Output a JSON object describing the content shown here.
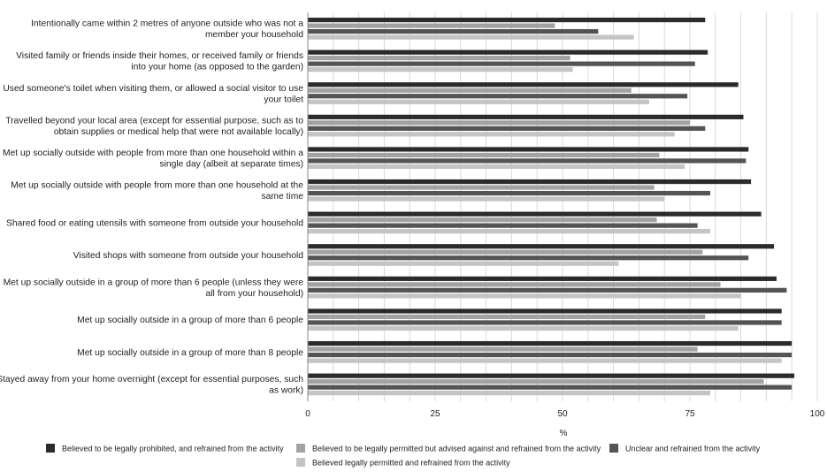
{
  "chart_data": {
    "type": "bar",
    "orientation": "horizontal",
    "xlabel": "%",
    "xlim": [
      0,
      100
    ],
    "xticks": [
      0,
      25,
      50,
      75,
      100
    ],
    "grid": true,
    "legend_placement": "bottom",
    "categories": [
      [
        "Intentionally came within 2 metres of anyone outside who was not a",
        "member your household"
      ],
      [
        "Visited family or friends inside their homes, or received family or friends",
        "into your home (as opposed to the garden)"
      ],
      [
        "Used someone's toilet when visiting them, or allowed a social visitor to use",
        "your toilet"
      ],
      [
        "Travelled beyond your local area (except for essential purpose, such as to",
        "obtain supplies or medical help that were not available locally)"
      ],
      [
        "Met up socially outside with people from more than one household within a",
        "single day (albeit at separate times)"
      ],
      [
        "Met up socially outside with people from more than one household at the",
        "same time"
      ],
      [
        "Shared food or eating utensils with someone from outside your household"
      ],
      [
        "Visited shops with someone from outside your household"
      ],
      [
        "Met up socially outside in a group of more than 6 people (unless they were",
        "all from your household)"
      ],
      [
        "Met up socially outside in a group of more than 6 people"
      ],
      [
        "Met up socially outside in a group of more than 8 people"
      ],
      [
        "Stayed away from your home overnight (except for essential purposes, such",
        "as work)"
      ]
    ],
    "series": [
      {
        "name": "Believed to be legally prohibited, and refrained from the activity",
        "color": "#2b2b2b",
        "values": [
          78,
          78.5,
          84.5,
          85.5,
          86.5,
          87,
          89,
          91.5,
          92,
          93,
          95,
          95.5
        ]
      },
      {
        "name": "Believed to be legally permitted but advised against and refrained from the activity",
        "color": "#a2a2a2",
        "values": [
          48.5,
          51.5,
          63.5,
          75,
          69,
          68,
          68.5,
          77.5,
          81,
          78,
          76.5,
          89.5
        ]
      },
      {
        "name": "Unclear and refrained from the activity",
        "color": "#545454",
        "values": [
          57,
          76,
          74.5,
          78,
          86,
          79,
          76.5,
          86.5,
          94,
          93,
          95,
          95
        ]
      },
      {
        "name": "Believed legally permitted and refrained from the activity",
        "color": "#c4c4c4",
        "values": [
          64,
          52,
          67,
          72,
          74,
          70,
          79,
          61,
          85,
          84.5,
          93,
          79
        ]
      }
    ]
  }
}
